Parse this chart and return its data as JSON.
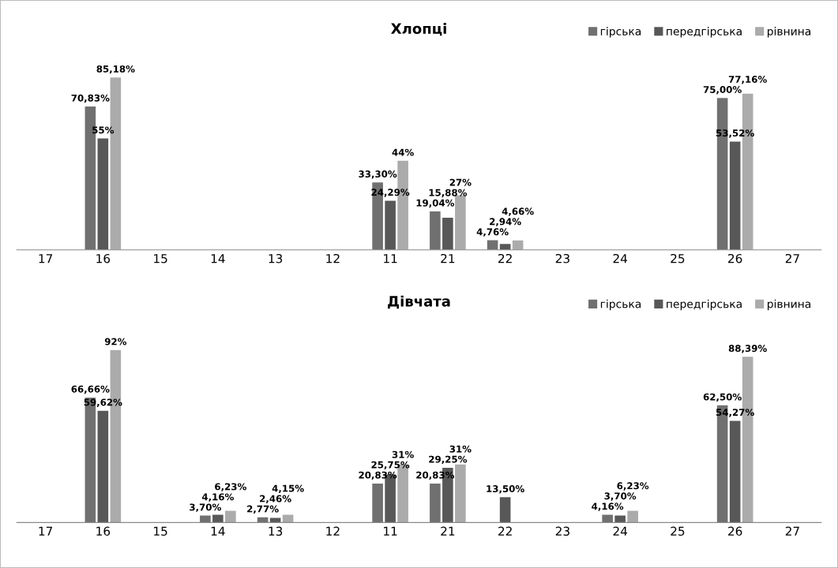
{
  "chart_data": [
    {
      "type": "bar",
      "title": "Хлопці",
      "categories": [
        "17",
        "16",
        "15",
        "14",
        "13",
        "12",
        "11",
        "21",
        "22",
        "23",
        "24",
        "25",
        "26",
        "27"
      ],
      "legend": "top right",
      "grid": false,
      "tick_labels": "x",
      "series": [
        {
          "name": "гірська",
          "color": "#707070",
          "values": [
            null,
            70.83,
            null,
            null,
            null,
            null,
            33.3,
            19.04,
            4.76,
            null,
            null,
            null,
            75.0,
            null
          ],
          "value_labels": [
            null,
            "70,83%",
            null,
            null,
            null,
            null,
            "33,30%",
            "19,04%",
            "4,76%",
            null,
            null,
            null,
            "75,00%",
            null
          ]
        },
        {
          "name": "передгірська",
          "color": "#585858",
          "values": [
            null,
            55,
            null,
            null,
            null,
            null,
            24.29,
            15.88,
            2.94,
            null,
            null,
            null,
            53.52,
            null
          ],
          "value_labels": [
            null,
            "55%",
            null,
            null,
            null,
            null,
            "24,29%",
            "15,88%",
            "2,94%",
            null,
            null,
            null,
            "53,52%",
            null
          ]
        },
        {
          "name": "рівнина",
          "color": "#ababab",
          "values": [
            null,
            85.18,
            null,
            null,
            null,
            null,
            44,
            27,
            4.66,
            null,
            null,
            null,
            77.16,
            null
          ],
          "value_labels": [
            null,
            "85,18%",
            null,
            null,
            null,
            null,
            "44%",
            "27%",
            "4,66%",
            null,
            null,
            null,
            "77,16%",
            null
          ]
        }
      ]
    },
    {
      "type": "bar",
      "title": "Дівчата",
      "categories": [
        "17",
        "16",
        "15",
        "14",
        "13",
        "12",
        "11",
        "21",
        "22",
        "23",
        "24",
        "25",
        "26",
        "27"
      ],
      "legend": "top right",
      "grid": false,
      "tick_labels": "x",
      "series": [
        {
          "name": "гірська",
          "color": "#707070",
          "values": [
            null,
            66.66,
            null,
            3.7,
            2.77,
            null,
            20.83,
            20.83,
            null,
            null,
            4.16,
            null,
            62.5,
            null
          ],
          "value_labels": [
            null,
            "66,66%",
            null,
            "3,70%",
            "2,77%",
            null,
            "20,83%",
            "20,83%",
            null,
            null,
            "4,16%",
            null,
            "62,50%",
            null
          ]
        },
        {
          "name": "передгірська",
          "color": "#585858",
          "values": [
            null,
            59.62,
            null,
            4.16,
            2.46,
            null,
            25.75,
            29.25,
            13.5,
            null,
            3.7,
            null,
            54.27,
            null
          ],
          "value_labels": [
            null,
            "59,62%",
            null,
            "4,16%",
            "2,46%",
            null,
            "25,75%",
            "29,25%",
            "13,50%",
            null,
            "3,70%",
            null,
            "54,27%",
            null
          ]
        },
        {
          "name": "рівнина",
          "color": "#ababab",
          "values": [
            null,
            92,
            null,
            6.23,
            4.15,
            null,
            31,
            31,
            null,
            null,
            6.23,
            null,
            88.39,
            null
          ],
          "value_labels": [
            null,
            "92%",
            null,
            "6,23%",
            "4,15%",
            null,
            "31%",
            "31%",
            null,
            null,
            "6,23%",
            null,
            "88,39%",
            null
          ]
        }
      ]
    }
  ]
}
